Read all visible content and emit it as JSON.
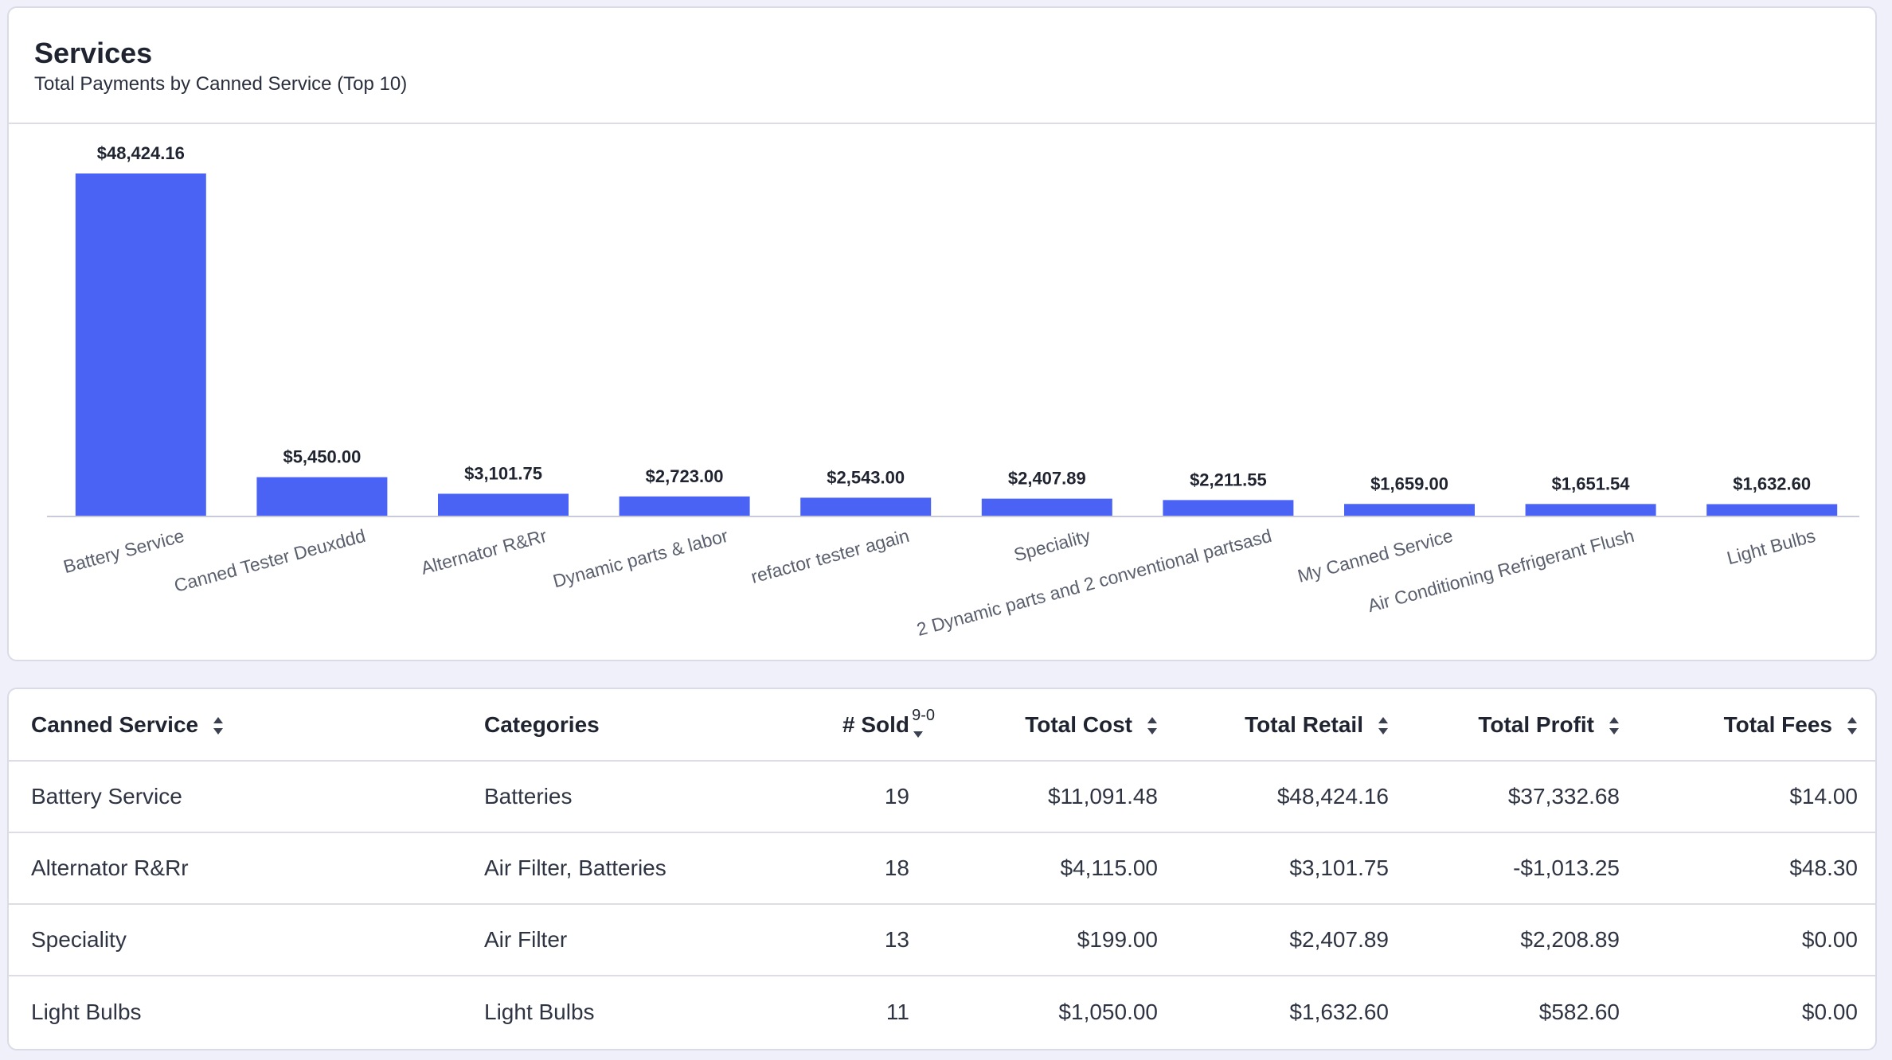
{
  "header": {
    "title": "Services",
    "subtitle": "Total Payments by Canned Service (Top 10)"
  },
  "colors": {
    "bar": "#4a63f5",
    "accent": "#4a63f5"
  },
  "chart_data": {
    "type": "bar",
    "title": "Services",
    "subtitle": "Total Payments by Canned Service (Top 10)",
    "categories": [
      "Battery Service",
      "Canned Tester Deuxddd",
      "Alternator R&Rr",
      "Dynamic parts & labor",
      "refactor tester again",
      "Speciality",
      "2 Dynamic parts and 2 conventional partsasd",
      "My Canned Service",
      "Air Conditioning Refrigerant Flush",
      "Light Bulbs"
    ],
    "values": [
      48424.16,
      5450.0,
      3101.75,
      2723.0,
      2543.0,
      2407.89,
      2211.55,
      1659.0,
      1651.54,
      1632.6
    ],
    "labels": [
      "$48,424.16",
      "$5,450.00",
      "$3,101.75",
      "$2,723.00",
      "$2,543.00",
      "$2,407.89",
      "$2,211.55",
      "$1,659.00",
      "$1,651.54",
      "$1,632.60"
    ],
    "xlabel": "",
    "ylabel": "",
    "ylim": [
      0,
      48424.16
    ],
    "grid": false,
    "legend": "none"
  },
  "table": {
    "columns": [
      {
        "label": "Canned Service",
        "sort": "both"
      },
      {
        "label": "Categories",
        "sort": "none"
      },
      {
        "label": "# Sold",
        "sort": "desc",
        "indicator": "9-0"
      },
      {
        "label": "Total Cost",
        "sort": "both"
      },
      {
        "label": "Total Retail",
        "sort": "both"
      },
      {
        "label": "Total Profit",
        "sort": "both"
      },
      {
        "label": "Total Fees",
        "sort": "both"
      }
    ],
    "rows": [
      [
        "Battery Service",
        "Batteries",
        "19",
        "$11,091.48",
        "$48,424.16",
        "$37,332.68",
        "$14.00"
      ],
      [
        "Alternator R&Rr",
        "Air Filter, Batteries",
        "18",
        "$4,115.00",
        "$3,101.75",
        "-$1,013.25",
        "$48.30"
      ],
      [
        "Speciality",
        "Air Filter",
        "13",
        "$199.00",
        "$2,407.89",
        "$2,208.89",
        "$0.00"
      ],
      [
        "Light Bulbs",
        "Light Bulbs",
        "11",
        "$1,050.00",
        "$1,632.60",
        "$582.60",
        "$0.00"
      ]
    ]
  }
}
